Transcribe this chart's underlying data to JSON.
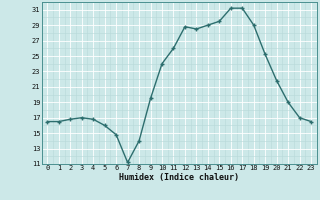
{
  "x": [
    0,
    1,
    2,
    3,
    4,
    5,
    6,
    7,
    8,
    9,
    10,
    11,
    12,
    13,
    14,
    15,
    16,
    17,
    18,
    19,
    20,
    21,
    22,
    23
  ],
  "y": [
    16.5,
    16.5,
    16.8,
    17.0,
    16.8,
    16.0,
    14.8,
    11.2,
    14.0,
    19.5,
    24.0,
    26.0,
    28.8,
    28.5,
    29.0,
    29.5,
    31.2,
    31.2,
    29.0,
    25.2,
    21.8,
    19.0,
    17.0,
    16.5
  ],
  "xlabel": "Humidex (Indice chaleur)",
  "ylim": [
    11,
    32
  ],
  "yticks": [
    11,
    13,
    15,
    17,
    19,
    21,
    23,
    25,
    27,
    29,
    31
  ],
  "xticks": [
    0,
    1,
    2,
    3,
    4,
    5,
    6,
    7,
    8,
    9,
    10,
    11,
    12,
    13,
    14,
    15,
    16,
    17,
    18,
    19,
    20,
    21,
    22,
    23
  ],
  "line_color": "#2d6e6e",
  "bg_color": "#cce8e8",
  "grid_major_color": "#ffffff",
  "grid_minor_color": "#b8d8d8",
  "tick_fontsize": 5.0,
  "xlabel_fontsize": 6.0
}
